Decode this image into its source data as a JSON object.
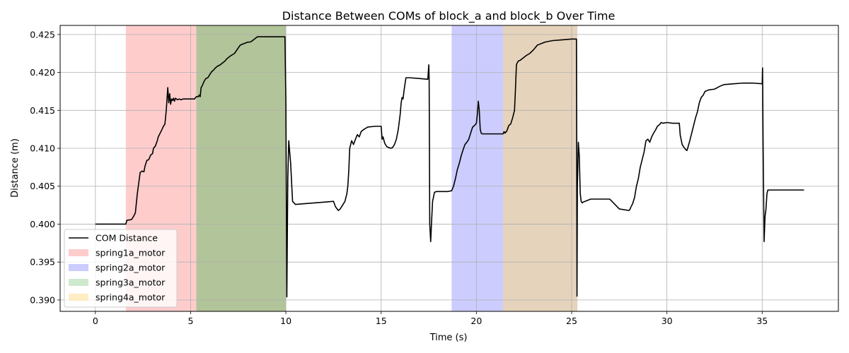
{
  "chart_data": {
    "type": "line",
    "title": "Distance Between COMs of block_a and block_b Over Time",
    "xlabel": "Time (s)",
    "ylabel": "Distance (m)",
    "xlim": [
      -1.85,
      39.0
    ],
    "ylim": [
      0.3885,
      0.4262
    ],
    "xticks": [
      0,
      5,
      10,
      15,
      20,
      25,
      30,
      35
    ],
    "xtick_labels": [
      "0",
      "5",
      "10",
      "15",
      "20",
      "25",
      "30",
      "35"
    ],
    "yticks": [
      0.39,
      0.395,
      0.4,
      0.405,
      0.41,
      0.415,
      0.42,
      0.425
    ],
    "ytick_labels": [
      "0.390",
      "0.395",
      "0.400",
      "0.405",
      "0.410",
      "0.415",
      "0.420",
      "0.425"
    ],
    "grid": true,
    "legend_position": "lower-left",
    "series": [
      {
        "name": "COM Distance",
        "color": "#000000",
        "x": [
          0.0,
          1.6,
          1.65,
          1.9,
          2.0,
          2.1,
          2.2,
          2.35,
          2.45,
          2.55,
          2.6,
          2.7,
          2.8,
          2.85,
          2.9,
          3.0,
          3.05,
          3.15,
          3.25,
          3.3,
          3.4,
          3.5,
          3.55,
          3.65,
          3.72,
          3.8,
          3.85,
          3.9,
          3.95,
          4.0,
          4.05,
          4.1,
          4.15,
          4.2,
          4.3,
          4.4,
          4.5,
          4.6,
          4.8,
          5.0,
          5.2,
          5.3,
          5.4,
          5.45,
          5.5,
          5.55,
          5.6,
          5.7,
          5.8,
          5.9,
          6.0,
          6.1,
          6.2,
          6.3,
          6.4,
          6.55,
          6.7,
          6.8,
          6.9,
          7.0,
          7.1,
          7.3,
          7.6,
          8.0,
          8.1,
          8.2,
          8.5,
          9.0,
          9.5,
          9.95,
          10.0,
          10.05,
          10.1,
          10.15,
          10.25,
          10.35,
          10.5,
          11.0,
          12.0,
          12.5,
          12.6,
          12.75,
          12.85,
          13.0,
          13.1,
          13.2,
          13.25,
          13.3,
          13.35,
          13.45,
          13.55,
          13.65,
          13.75,
          13.85,
          13.95,
          14.1,
          14.3,
          14.7,
          15.0,
          15.05,
          15.1,
          15.15,
          15.2,
          15.3,
          15.5,
          15.6,
          15.7,
          15.8,
          15.9,
          16.0,
          16.05,
          16.1,
          16.15,
          16.2,
          16.3,
          16.5,
          17.0,
          17.45,
          17.5,
          17.52,
          17.55,
          17.6,
          17.65,
          17.7,
          17.8,
          17.9,
          18.0,
          18.5,
          18.7,
          18.8,
          18.9,
          19.0,
          19.1,
          19.2,
          19.3,
          19.4,
          19.5,
          19.6,
          19.7,
          19.8,
          19.9,
          20.0,
          20.05,
          20.1,
          20.15,
          20.2,
          20.25,
          20.3,
          20.4,
          20.6,
          21.0,
          21.4,
          21.45,
          21.5,
          21.6,
          21.7,
          21.8,
          21.9,
          22.0,
          22.05,
          22.1,
          22.15,
          22.2,
          22.3,
          22.5,
          22.6,
          22.8,
          23.0,
          23.2,
          23.4,
          23.6,
          24.0,
          24.5,
          25.0,
          25.25,
          25.28,
          25.3,
          25.35,
          25.4,
          25.45,
          25.5,
          25.55,
          25.6,
          25.7,
          26.0,
          27.0,
          27.5,
          28.0,
          28.05,
          28.1,
          28.2,
          28.3,
          28.4,
          28.5,
          28.6,
          28.7,
          28.8,
          28.9,
          29.0,
          29.1,
          29.2,
          29.3,
          29.4,
          29.5,
          29.6,
          29.7,
          29.8,
          30.0,
          30.3,
          30.6,
          30.65,
          30.7,
          30.8,
          30.9,
          31.0,
          31.05,
          31.1,
          31.2,
          31.3,
          31.4,
          31.5,
          31.6,
          31.7,
          31.8,
          31.9,
          32.0,
          32.2,
          32.5,
          32.8,
          33.0,
          33.5,
          34.0,
          34.5,
          35.0,
          35.02,
          35.05,
          35.1,
          35.15,
          35.2,
          35.25,
          35.3,
          35.4,
          35.5,
          36.0,
          36.5,
          37.2
        ],
        "y": [
          0.4,
          0.4,
          0.4005,
          0.4006,
          0.401,
          0.4015,
          0.404,
          0.4068,
          0.407,
          0.4069,
          0.4076,
          0.4084,
          0.4085,
          0.4088,
          0.4091,
          0.4093,
          0.41,
          0.4103,
          0.411,
          0.4115,
          0.412,
          0.4125,
          0.4128,
          0.4132,
          0.415,
          0.418,
          0.416,
          0.4172,
          0.4158,
          0.4165,
          0.4163,
          0.4166,
          0.4162,
          0.4166,
          0.4164,
          0.4165,
          0.4164,
          0.4165,
          0.4165,
          0.4165,
          0.4165,
          0.4168,
          0.4168,
          0.417,
          0.4168,
          0.418,
          0.4182,
          0.4188,
          0.4192,
          0.4193,
          0.4197,
          0.4201,
          0.4203,
          0.4206,
          0.4208,
          0.421,
          0.4213,
          0.4215,
          0.4218,
          0.422,
          0.4222,
          0.4225,
          0.4236,
          0.424,
          0.424,
          0.4241,
          0.4247,
          0.4247,
          0.4247,
          0.4247,
          0.416,
          0.3904,
          0.406,
          0.411,
          0.408,
          0.403,
          0.4026,
          0.4027,
          0.4029,
          0.403,
          0.4023,
          0.4018,
          0.402,
          0.4026,
          0.403,
          0.404,
          0.405,
          0.407,
          0.41,
          0.411,
          0.4105,
          0.4112,
          0.4118,
          0.4115,
          0.4122,
          0.4125,
          0.4128,
          0.4129,
          0.4129,
          0.4112,
          0.4115,
          0.411,
          0.4106,
          0.4102,
          0.41,
          0.4101,
          0.4105,
          0.4112,
          0.4125,
          0.4145,
          0.416,
          0.4167,
          0.4165,
          0.4176,
          0.4193,
          0.4193,
          0.4192,
          0.4191,
          0.421,
          0.419,
          0.4,
          0.3977,
          0.4005,
          0.403,
          0.4042,
          0.4043,
          0.4043,
          0.4043,
          0.4044,
          0.405,
          0.406,
          0.4072,
          0.408,
          0.409,
          0.4098,
          0.4105,
          0.4108,
          0.4112,
          0.412,
          0.4128,
          0.413,
          0.4133,
          0.4145,
          0.4162,
          0.415,
          0.4125,
          0.412,
          0.4119,
          0.4119,
          0.4119,
          0.4119,
          0.4119,
          0.4122,
          0.412,
          0.4123,
          0.413,
          0.4132,
          0.414,
          0.415,
          0.4178,
          0.421,
          0.4213,
          0.4215,
          0.4216,
          0.422,
          0.4222,
          0.4225,
          0.423,
          0.4236,
          0.4238,
          0.424,
          0.4242,
          0.4243,
          0.4244,
          0.4244,
          0.3905,
          0.405,
          0.4108,
          0.409,
          0.404,
          0.403,
          0.4028,
          0.4029,
          0.403,
          0.4033,
          0.4033,
          0.402,
          0.4018,
          0.4019,
          0.4022,
          0.4027,
          0.4035,
          0.405,
          0.406,
          0.4075,
          0.4085,
          0.4095,
          0.411,
          0.4112,
          0.4108,
          0.4115,
          0.412,
          0.4124,
          0.4129,
          0.4131,
          0.4134,
          0.4133,
          0.4134,
          0.4133,
          0.4133,
          0.4133,
          0.4117,
          0.4105,
          0.4101,
          0.4098,
          0.4097,
          0.4101,
          0.411,
          0.412,
          0.413,
          0.414,
          0.4148,
          0.416,
          0.4167,
          0.417,
          0.4175,
          0.4177,
          0.4178,
          0.4182,
          0.4184,
          0.4185,
          0.4186,
          0.4186,
          0.4185,
          0.4206,
          0.41,
          0.3977,
          0.401,
          0.402,
          0.404,
          0.4045,
          0.4045,
          0.4045,
          0.4045,
          0.4045,
          0.4045
        ]
      }
    ],
    "spans": [
      {
        "name": "spring1a_motor",
        "color": "#ff9999",
        "opacity": 0.5,
        "legend_alpha": 0.5,
        "ranges": [
          [
            1.6,
            10.0
          ]
        ]
      },
      {
        "name": "spring2a_motor",
        "color": "#9999ff",
        "opacity": 0.5,
        "legend_alpha": 0.5,
        "ranges": [
          [
            18.7,
            25.3
          ]
        ]
      },
      {
        "name": "spring3a_motor",
        "color": "#66bb66",
        "opacity": 0.5,
        "legend_alpha": 0.32,
        "ranges": [
          [
            5.3,
            10.0
          ]
        ]
      },
      {
        "name": "spring4a_motor",
        "color": "#ffd97a",
        "opacity": 0.5,
        "legend_alpha": 0.45,
        "ranges": [
          [
            21.4,
            25.3
          ]
        ]
      }
    ]
  }
}
